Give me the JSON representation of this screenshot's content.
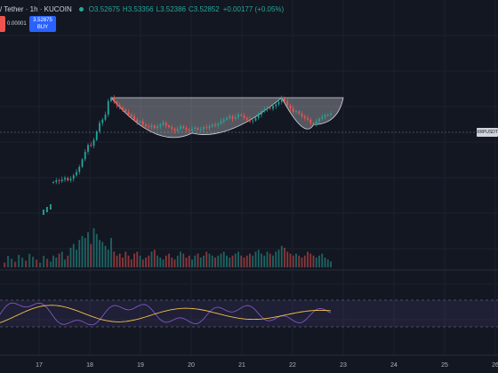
{
  "legend": {
    "pair": "/ Tether · 1h · KUCOIN",
    "open_label": "O",
    "open": "3.52675",
    "high_label": "H",
    "high": "3.53356",
    "low_label": "L",
    "low": "3.52386",
    "close_label": "C",
    "close": "3.52852",
    "change": "+0.00177 (+0.05%)"
  },
  "trade": {
    "spread": "0.00001",
    "buy_price": "3.52875",
    "buy_label": "BUY"
  },
  "price_tag": "XRPUSDT",
  "time_axis": {
    "labels": [
      "17",
      "18",
      "19",
      "20",
      "21",
      "22",
      "23",
      "24",
      "25",
      "26"
    ]
  },
  "colors": {
    "up": "#26a69a",
    "down": "#ef5350",
    "rsi_line": "#7e57c2",
    "rsi_ma": "#f0c24b",
    "background": "#131722",
    "pattern_fill": "#ffffff"
  },
  "chart_data": {
    "type": "candlestick",
    "symbol": "XRPUSDT",
    "interval": "1h",
    "exchange": "KUCOIN",
    "pattern": "cup-and-handle overlay",
    "closes_path": [
      0.0,
      0.02,
      0.01,
      0.03,
      0.05,
      0.02,
      0.04,
      0.08,
      0.12,
      0.18,
      0.27,
      0.36,
      0.44,
      0.43,
      0.5,
      0.6,
      0.7,
      0.74,
      0.8,
      0.96,
      1.0,
      0.95,
      0.91,
      0.88,
      0.86,
      0.83,
      0.8,
      0.78,
      0.74,
      0.71,
      0.72,
      0.68,
      0.66,
      0.65,
      0.67,
      0.64,
      0.66,
      0.68,
      0.7,
      0.67,
      0.65,
      0.63,
      0.61,
      0.63,
      0.66,
      0.64,
      0.62,
      0.61,
      0.63,
      0.64,
      0.62,
      0.63,
      0.65,
      0.64,
      0.66,
      0.68,
      0.67,
      0.69,
      0.72,
      0.74,
      0.76,
      0.78,
      0.75,
      0.77,
      0.8,
      0.79,
      0.76,
      0.74,
      0.72,
      0.73,
      0.76,
      0.8,
      0.84,
      0.86,
      0.88,
      0.87,
      0.9,
      0.92,
      0.95,
      1.0,
      0.96,
      0.91,
      0.87,
      0.83,
      0.84,
      0.81,
      0.78,
      0.76,
      0.74,
      0.7,
      0.68,
      0.72,
      0.75,
      0.77,
      0.79,
      0.8,
      0.81
    ],
    "volumes": [
      0.3,
      0.25,
      0.35,
      0.4,
      0.2,
      0.3,
      0.5,
      0.6,
      0.45,
      0.7,
      0.8,
      0.75,
      0.9,
      0.6,
      1.0,
      0.85,
      0.7,
      0.65,
      0.55,
      0.45,
      0.75,
      0.4,
      0.3,
      0.35,
      0.25,
      0.4,
      0.3,
      0.2,
      0.35,
      0.4,
      0.3,
      0.2,
      0.25,
      0.3,
      0.4,
      0.45,
      0.3,
      0.25,
      0.2,
      0.3,
      0.35,
      0.25,
      0.2,
      0.3,
      0.4,
      0.35,
      0.25,
      0.3,
      0.2,
      0.3,
      0.35,
      0.25,
      0.3,
      0.4,
      0.35,
      0.3,
      0.25,
      0.3,
      0.35,
      0.4,
      0.3,
      0.25,
      0.3,
      0.35,
      0.4,
      0.3,
      0.25,
      0.3,
      0.35,
      0.3,
      0.4,
      0.45,
      0.35,
      0.3,
      0.4,
      0.35,
      0.3,
      0.4,
      0.45,
      0.55,
      0.5,
      0.4,
      0.35,
      0.3,
      0.35,
      0.3,
      0.25,
      0.3,
      0.4,
      0.35,
      0.3,
      0.25,
      0.3,
      0.35,
      0.25,
      0.2,
      0.15
    ]
  }
}
